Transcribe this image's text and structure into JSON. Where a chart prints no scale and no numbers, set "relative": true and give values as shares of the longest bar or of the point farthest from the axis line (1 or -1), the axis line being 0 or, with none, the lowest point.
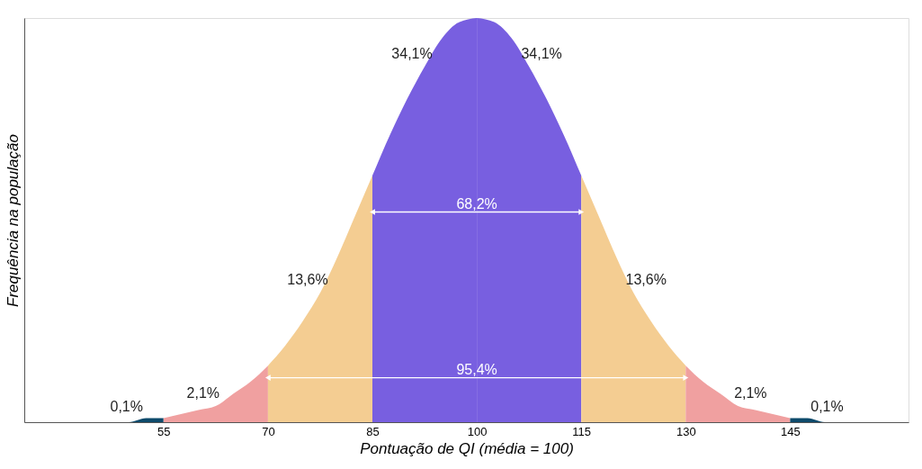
{
  "chart_data": {
    "type": "area",
    "relative": true,
    "xlabel": "Pontuação de QI (média = 100)",
    "ylabel": "Frequência na população",
    "xlim": [
      35,
      162
    ],
    "xticks": [
      55,
      70,
      85,
      100,
      115,
      130,
      145
    ],
    "grid": false,
    "series": [
      {
        "name": "0,1%",
        "color": "#0d4a6b",
        "x": [
          48,
          50,
          52.5,
          55
        ],
        "values": [
          0.0,
          0.0,
          0.01,
          0.01
        ]
      },
      {
        "name": "2,1%",
        "color": "#f0a0a0",
        "x": [
          55,
          57.5,
          60,
          62.5,
          65,
          67.5,
          70
        ],
        "values": [
          0.01,
          0.02,
          0.03,
          0.04,
          0.07,
          0.1,
          0.14
        ]
      },
      {
        "name": "13,6%",
        "color": "#f4cd92",
        "x": [
          70,
          72.5,
          75,
          77.5,
          80,
          82.5,
          85
        ],
        "values": [
          0.14,
          0.19,
          0.25,
          0.32,
          0.41,
          0.51,
          0.61
        ]
      },
      {
        "name": "34,1%",
        "color": "#785fe0",
        "x": [
          85,
          87.5,
          90,
          92.5,
          95,
          97.5,
          100
        ],
        "values": [
          0.61,
          0.71,
          0.8,
          0.88,
          0.95,
          0.99,
          1.0
        ]
      },
      {
        "name": "34,1%",
        "color": "#785fe0",
        "x": [
          100,
          102.5,
          105,
          107.5,
          110,
          112.5,
          115
        ],
        "values": [
          1.0,
          0.99,
          0.95,
          0.88,
          0.8,
          0.71,
          0.61
        ]
      },
      {
        "name": "13,6%",
        "color": "#f4cd92",
        "x": [
          115,
          117.5,
          120,
          122.5,
          125,
          127.5,
          130
        ],
        "values": [
          0.61,
          0.51,
          0.41,
          0.32,
          0.25,
          0.19,
          0.14
        ]
      },
      {
        "name": "2,1%",
        "color": "#f0a0a0",
        "x": [
          130,
          132.5,
          135,
          137.5,
          140,
          142.5,
          145
        ],
        "values": [
          0.14,
          0.1,
          0.07,
          0.04,
          0.03,
          0.02,
          0.01
        ]
      },
      {
        "name": "0,1%",
        "color": "#0d4a6b",
        "x": [
          145,
          147.5,
          150,
          152
        ],
        "values": [
          0.01,
          0.01,
          0.0,
          0.0
        ]
      },
      {
        "name": "68,2%",
        "type": "line",
        "marker": "triangle",
        "color": "#ffffff",
        "x": [
          85,
          115
        ],
        "values": [
          0.52,
          0.52
        ]
      },
      {
        "name": "95,4%",
        "type": "line",
        "marker": "triangle",
        "color": "#ffffff",
        "x": [
          70,
          130
        ],
        "values": [
          0.11,
          0.11
        ]
      }
    ]
  }
}
